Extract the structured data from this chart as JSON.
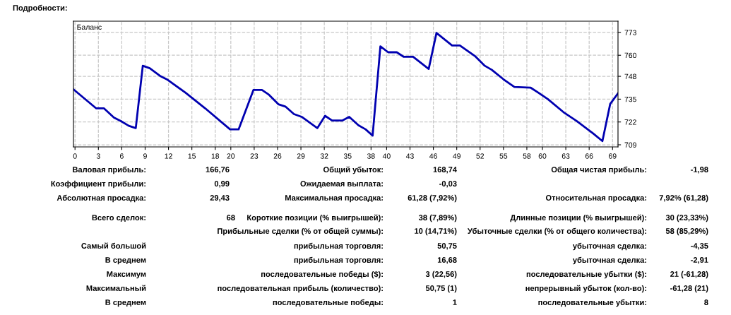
{
  "chart_data": {
    "type": "line",
    "title": "Баланс",
    "x": [
      -0.2,
      2.7,
      3.7,
      5.0,
      5.9,
      6.9,
      7.8,
      8.7,
      9.6,
      11.0,
      11.9,
      14.2,
      16.7,
      19.9,
      21.0,
      22.9,
      24.0,
      24.9,
      26.1,
      27.0,
      28.1,
      29.1,
      31.1,
      32.1,
      33.0,
      34.3,
      35.2,
      36.4,
      37.3,
      38.2,
      39.2,
      40.2,
      41.3,
      42.2,
      43.4,
      45.4,
      46.4,
      48.4,
      49.4,
      51.4,
      52.6,
      53.5,
      55.0,
      56.4,
      58.5,
      59.5,
      60.7,
      62.7,
      64.4,
      66.5,
      67.7,
      68.7,
      69.7
    ],
    "series": [
      {
        "color": "#0000b0",
        "values": [
          740.6,
          729.8,
          729.8,
          724.5,
          722.5,
          719.8,
          718.5,
          754.0,
          752.6,
          748.0,
          746.0,
          738.6,
          729.8,
          717.8,
          717.8,
          740.2,
          740.2,
          737.5,
          732.1,
          730.8,
          726.5,
          724.9,
          718.5,
          725.5,
          722.8,
          722.8,
          724.9,
          720.1,
          717.8,
          714.2,
          765.1,
          761.7,
          761.7,
          759.1,
          759.1,
          752.2,
          772.7,
          765.6,
          765.6,
          759.3,
          754.0,
          751.7,
          746.3,
          741.9,
          741.5,
          738.6,
          735.0,
          727.6,
          722.5,
          715.5,
          711.1,
          732.3,
          738.3
        ]
      }
    ],
    "xlim": [
      -0.2,
      69.7
    ],
    "xticks": [
      0,
      3,
      6,
      9,
      12,
      15,
      18,
      20,
      23,
      26,
      29,
      32,
      35,
      38,
      40,
      43,
      46,
      49,
      52,
      55,
      58,
      60,
      63,
      66,
      69
    ],
    "ylim": [
      707.8,
      779.4
    ],
    "yticks": [
      709,
      722,
      735,
      748,
      760,
      773
    ],
    "grid": true,
    "legend": false,
    "marker": "none",
    "line_style": "solid",
    "annotations": [
      "Подробности:",
      "Валовая прибыль:",
      "166,76",
      "Общий убыток:",
      "168,74",
      "Общая чистая прибыль:",
      "-1,98",
      "Коэффициент прибыли:",
      "0,99",
      "Ожидаемая выплата:",
      "-0,03",
      "Абсолютная просадка:",
      "29,43",
      "Максимальная просадка:",
      "61,28 (7,92%)",
      "Относительная просадка:",
      "7,92% (61,28)",
      "Всего сделок:",
      "68",
      "Короткие позиции (% выигрышей):",
      "38 (7,89%)",
      "Длинные позиции (% выигрышей):",
      "30 (23,33%)",
      "Прибыльные сделки (% от общей суммы):",
      "10 (14,71%)",
      "Убыточные сделки (% от общего количества):",
      "58 (85,29%)",
      "Самый большой",
      "прибыльная торговля:",
      "50,75",
      "убыточная сделка:",
      "-4,35",
      "В среднем",
      "прибыльная торговля:",
      "16,68",
      "убыточная сделка:",
      "-2,91",
      "Максимум",
      "последовательные победы ($):",
      "3 (22,56)",
      "последовательные убытки ($):",
      "21 (-61,28)",
      "Максимальный",
      "последовательная прибыль (количество):",
      "50,75 (1)",
      "непрерывный убыток (кол-во):",
      "-61,28 (21)",
      "В среднем",
      "последовательные победы:",
      "1",
      "последовательные убытки:",
      "8"
    ]
  }
}
